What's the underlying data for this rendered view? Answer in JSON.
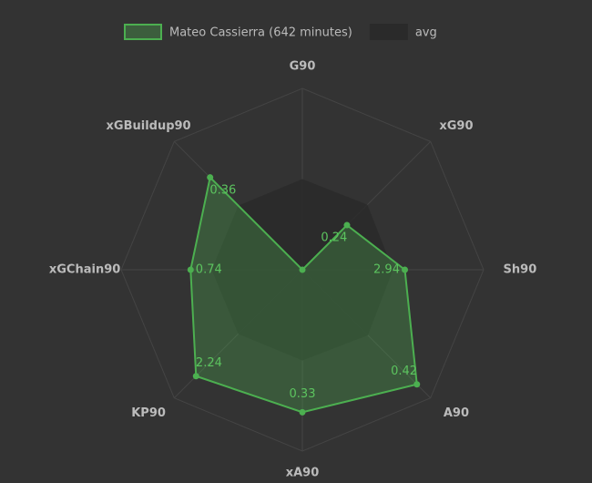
{
  "chart_data": {
    "type": "radar",
    "categories": [
      "G90",
      "xG90",
      "Sh90",
      "A90",
      "xA90",
      "KP90",
      "xGChain90",
      "xGBuildup90"
    ],
    "rlims": [
      [
        0,
        1
      ],
      [
        0,
        0.69
      ],
      [
        0,
        5.2
      ],
      [
        0,
        0.47
      ],
      [
        0,
        0.42
      ],
      [
        0,
        2.7
      ],
      [
        0,
        1.2
      ],
      [
        0,
        0.5
      ]
    ],
    "grid": true,
    "legend": "top",
    "series": [
      {
        "name": "Mateo Cassierra (642 minutes)",
        "color": "#4caf50",
        "values": [
          0,
          0.24,
          2.94,
          0.42,
          0.33,
          2.24,
          0.74,
          0.36
        ],
        "value_labels": [
          null,
          "0.24",
          "2.94",
          "0.42",
          "0.33",
          "2.24",
          "0.74",
          "0.36"
        ]
      },
      {
        "name": "avg",
        "color": "#2a2a2a",
        "values": [
          0.5,
          0.35,
          2.6,
          0.24,
          0.21,
          1.35,
          0.6,
          0.25
        ]
      }
    ]
  }
}
